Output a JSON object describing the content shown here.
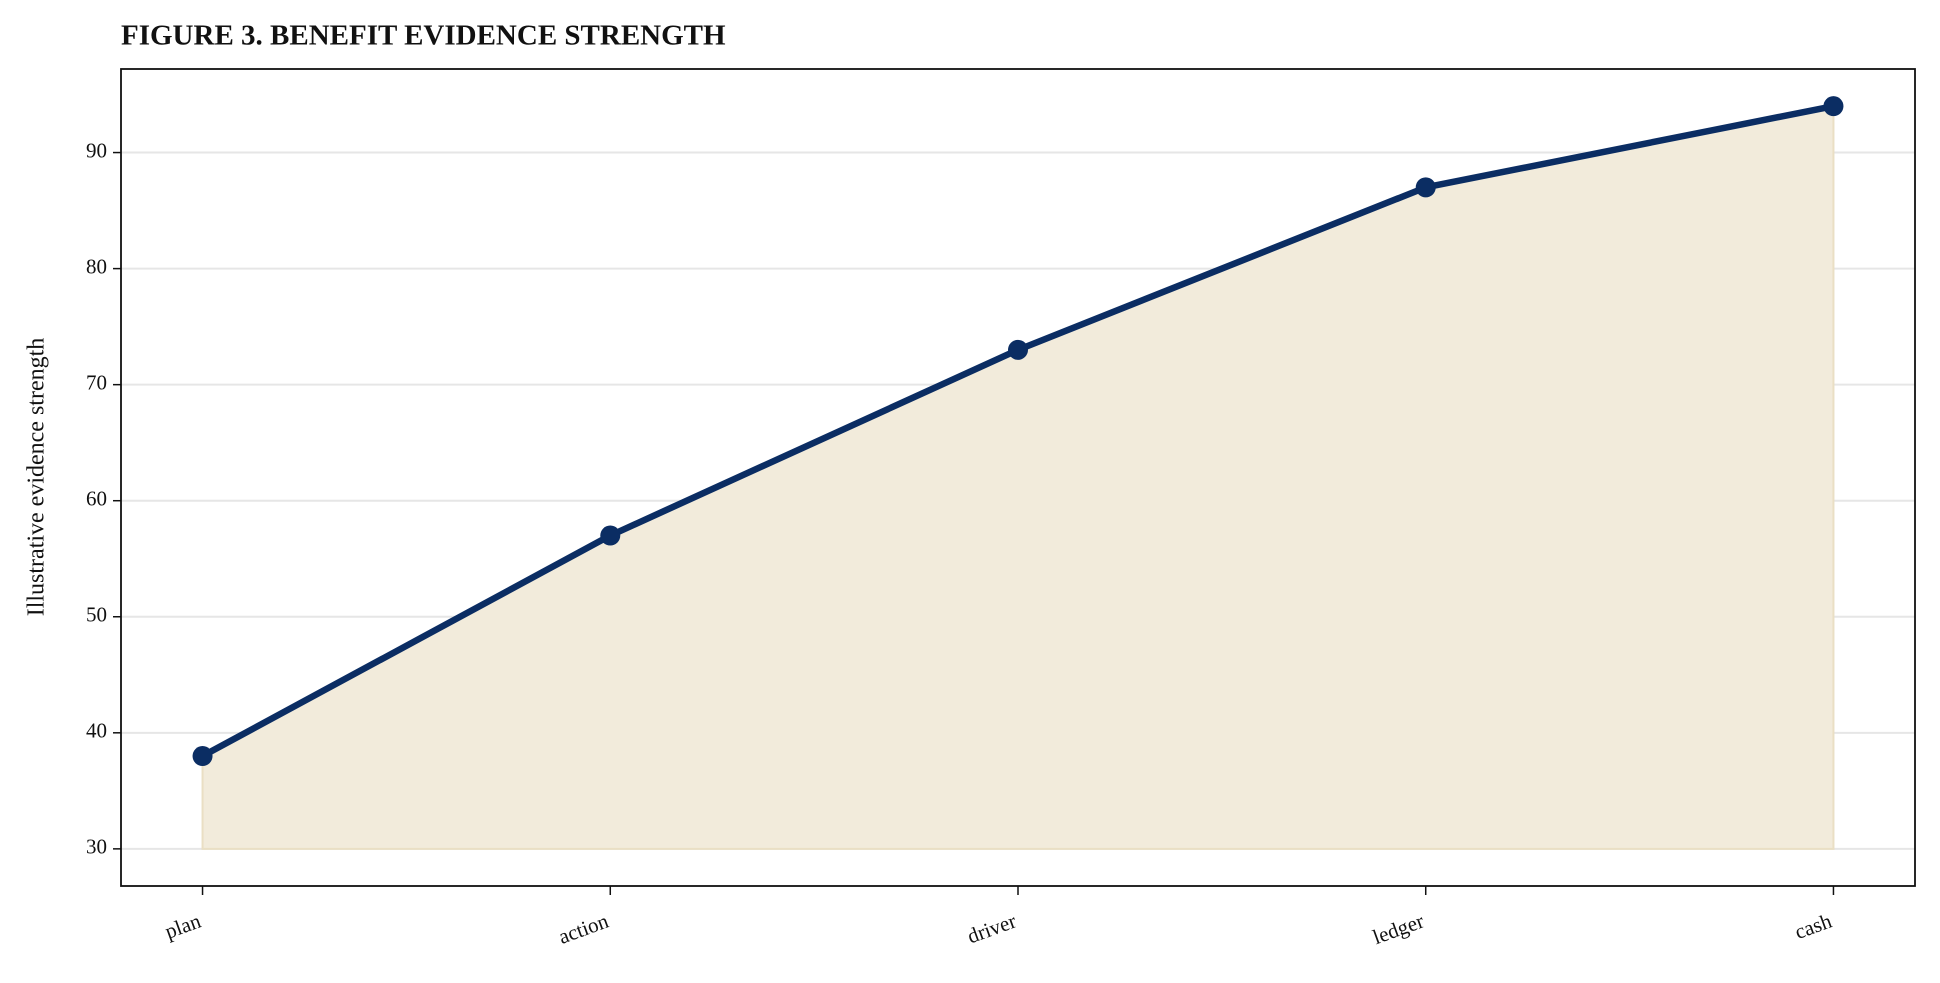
{
  "chart_data": {
    "type": "area-line",
    "title": "FIGURE 3. BENEFIT EVIDENCE STRENGTH",
    "y_label": "Illustrative evidence strength",
    "categories": [
      "plan",
      "action",
      "driver",
      "ledger",
      "cash"
    ],
    "values": [
      38,
      57,
      73,
      87,
      94
    ],
    "color": "#0b2d63",
    "fill_color": "#f2ebdb",
    "ylim": [
      26.8,
      97.2
    ],
    "yticks": [
      30,
      40,
      50,
      60,
      70,
      80,
      90
    ],
    "grid": true
  }
}
